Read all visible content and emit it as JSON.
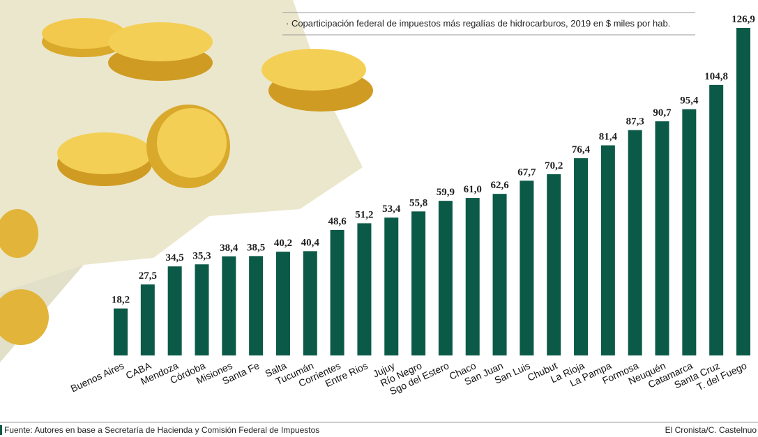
{
  "chart_data": {
    "type": "bar",
    "title": "· Coparticipación federal de impuestos más regalías de hidrocarburos, 2019 en $ miles por hab.",
    "categories": [
      "Buenos Aires",
      "CABA",
      "Mendoza",
      "Córdoba",
      "Misiones",
      "Santa Fe",
      "Salta",
      "Tucumán",
      "Corrientes",
      "Entre Rios",
      "Jujuy",
      "Río Negro",
      "Sgo del Estero",
      "Chaco",
      "San Juan",
      "San Luis",
      "Chubut",
      "La Rioja",
      "La Pampa",
      "Formosa",
      "Neuquén",
      "Catamarca",
      "Santa Cruz",
      "T. del Fuego"
    ],
    "values": [
      18.2,
      27.5,
      34.5,
      35.3,
      38.4,
      38.5,
      40.2,
      40.4,
      48.6,
      51.2,
      53.4,
      55.8,
      59.9,
      61.0,
      62.6,
      67.7,
      70.2,
      76.4,
      81.4,
      87.3,
      90.7,
      95.4,
      104.8,
      126.9
    ],
    "value_labels": [
      "18,2",
      "27,5",
      "34,5",
      "35,3",
      "38,4",
      "38,5",
      "40,2",
      "40,4",
      "48,6",
      "51,2",
      "53,4",
      "55,8",
      "59,9",
      "61,0",
      "62,6",
      "67,7",
      "70,2",
      "76,4",
      "81,4",
      "87,3",
      "90,7",
      "95,4",
      "104,8",
      "126,9"
    ],
    "color": "#0b5a47",
    "source": "Fuente: Autores en base a Secretaría de Hacienda y Comisión Federal de Impuestos",
    "credit": "El Cronista/C. Castelnuo"
  }
}
